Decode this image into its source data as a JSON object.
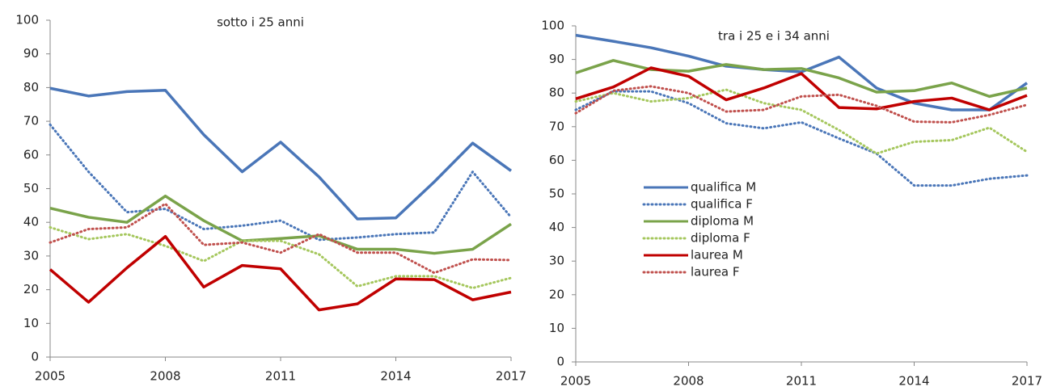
{
  "chart_data": [
    {
      "type": "line",
      "title": "sotto i 25 anni",
      "x": [
        2005,
        2006,
        2007,
        2008,
        2009,
        2010,
        2011,
        2012,
        2013,
        2014,
        2015,
        2016,
        2017
      ],
      "xlim": [
        2005,
        2017
      ],
      "xticks": [
        2005,
        2008,
        2011,
        2014,
        2017
      ],
      "ylim": [
        0,
        100
      ],
      "yticks": [
        0,
        10,
        20,
        30,
        40,
        50,
        60,
        70,
        80,
        90,
        100
      ],
      "grid": false,
      "series": [
        {
          "color": "#4a76b8",
          "dash": false,
          "values": [
            79.8,
            77.5,
            78.8,
            79.2,
            66,
            55,
            63.8,
            53.5,
            41,
            41.3,
            52,
            63.5,
            55.3
          ]
        },
        {
          "color": "#4a76b8",
          "dash": true,
          "values": [
            69,
            55,
            43,
            44,
            38,
            39,
            40.5,
            34.8,
            35.5,
            36.5,
            37,
            55,
            41.5
          ]
        },
        {
          "color": "#7aa34a",
          "dash": false,
          "values": [
            44.2,
            41.5,
            40,
            47.8,
            40.5,
            34.5,
            35.2,
            36,
            32,
            32,
            30.8,
            32,
            39.5
          ]
        },
        {
          "color": "#a5c75d",
          "dash": true,
          "values": [
            38.5,
            35,
            36.5,
            33,
            28.5,
            34.5,
            34.5,
            30.5,
            21,
            24,
            24,
            20.5,
            23.5
          ]
        },
        {
          "color": "#c00000",
          "dash": false,
          "values": [
            26,
            16.3,
            26.5,
            35.8,
            20.8,
            27.2,
            26.2,
            14,
            15.8,
            23.2,
            23,
            17,
            19.3
          ]
        },
        {
          "color": "#c0504d",
          "dash": true,
          "values": [
            34,
            38,
            38.5,
            45.5,
            33.3,
            34,
            31,
            36.5,
            31,
            31,
            25,
            29,
            28.8
          ]
        }
      ]
    },
    {
      "type": "line",
      "title": "tra i 25 e i 34 anni",
      "x": [
        2005,
        2006,
        2007,
        2008,
        2009,
        2010,
        2011,
        2012,
        2013,
        2014,
        2015,
        2016,
        2017
      ],
      "xlim": [
        2005,
        2017
      ],
      "xticks": [
        2005,
        2008,
        2011,
        2014,
        2017
      ],
      "ylim": [
        0,
        100
      ],
      "yticks": [
        0,
        10,
        20,
        30,
        40,
        50,
        60,
        70,
        80,
        90,
        100
      ],
      "grid": false,
      "legend": "left",
      "series": [
        {
          "name": "qualifica M",
          "color": "#4a76b8",
          "dash": false,
          "values": [
            97.2,
            95.4,
            93.5,
            91,
            88,
            87,
            86.3,
            90.7,
            81.5,
            77,
            75,
            75,
            83
          ]
        },
        {
          "name": "qualifica F",
          "color": "#4a76b8",
          "dash": true,
          "values": [
            75,
            80.5,
            80.5,
            77,
            71,
            69.5,
            71.3,
            66.5,
            62,
            52.5,
            52.5,
            54.5,
            55.5
          ]
        },
        {
          "name": "diploma M",
          "color": "#7aa34a",
          "dash": false,
          "values": [
            86,
            89.7,
            87,
            86.5,
            88.5,
            87,
            87.3,
            84.5,
            80.3,
            80.7,
            83,
            79,
            81.5
          ]
        },
        {
          "name": "diploma F",
          "color": "#a5c75d",
          "dash": true,
          "values": [
            77.5,
            80,
            77.5,
            78.5,
            81,
            77,
            75,
            69,
            62,
            65.5,
            66,
            69.7,
            62.5
          ]
        },
        {
          "name": "laurea M",
          "color": "#c00000",
          "dash": false,
          "values": [
            78.3,
            81.8,
            87.5,
            85,
            78,
            81.5,
            85.8,
            75.7,
            75.3,
            77.5,
            78.5,
            75,
            79.3
          ]
        },
        {
          "name": "laurea F",
          "color": "#c0504d",
          "dash": true,
          "values": [
            74,
            80.7,
            82,
            80,
            74.5,
            75,
            79,
            79.5,
            76.2,
            71.5,
            71.3,
            73.5,
            76.5
          ]
        }
      ]
    }
  ]
}
